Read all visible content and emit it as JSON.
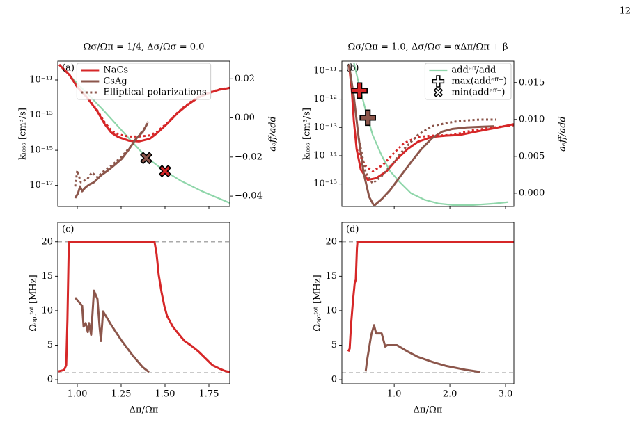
{
  "page_number": "12",
  "chart_data": [
    {
      "type": "line",
      "panel_label": "(a)",
      "title": "Ωσ/Ωπ = 1/4, Δσ/Ωσ = 0.0",
      "ylabel": "kₗₒₛₛ [cm³/s]",
      "y2label": "aₑff/add",
      "y2color": "#3cb371",
      "xlim": [
        0.889,
        1.869
      ],
      "ylim": [
        6.3e-19,
        1.17e-10
      ],
      "ylog": true,
      "yticks": [
        {
          "value": 1e-11,
          "label": "10⁻¹¹"
        },
        {
          "value": 1e-13,
          "label": "10⁻¹³"
        },
        {
          "value": 1e-15,
          "label": "10⁻¹⁵"
        },
        {
          "value": 1e-17,
          "label": "10⁻¹⁷"
        }
      ],
      "y2lim": [
        -0.0453,
        0.029
      ],
      "y2ticks": [
        {
          "value": 0.02,
          "label": "0.02"
        },
        {
          "value": 0,
          "label": "0.00"
        },
        {
          "value": -0.02,
          "label": "−0.02"
        },
        {
          "value": -0.04,
          "label": "−0.04"
        }
      ],
      "legend": "upper center",
      "series": [
        {
          "color": "#8fd6aa",
          "style": "solid",
          "axis": "y2",
          "x": [
            0.909,
            0.956,
            1.016,
            1.075,
            1.155,
            1.234,
            1.313,
            1.393,
            1.5,
            1.591,
            1.71,
            1.869
          ],
          "values": [
            0.0264,
            0.0218,
            0.0161,
            0.0108,
            0.0033,
            -0.0045,
            -0.0123,
            -0.0201,
            -0.0272,
            -0.0322,
            -0.0375,
            -0.0435
          ]
        },
        {
          "name": "NaCs",
          "color": "#d62728",
          "style": "solid",
          "x": [
            0.897,
            0.956,
            1.0,
            1.056,
            1.115,
            1.155,
            1.194,
            1.234,
            1.294,
            1.353,
            1.413,
            1.452,
            1.512,
            1.571,
            1.631,
            1.69,
            1.75,
            1.81,
            1.869
          ],
          "values": [
            7.4e-11,
            1.9e-11,
            4e-12,
            1e-12,
            1.6e-13,
            3.2e-14,
            1e-14,
            5.6e-15,
            3.5e-15,
            3.2e-15,
            4.5e-15,
            8.9e-15,
            3.2e-14,
            1.3e-13,
            4e-13,
            1e-12,
            1.8e-12,
            2.8e-12,
            3.5e-12
          ]
        },
        {
          "name": "CsAg",
          "color": "#8c564b",
          "style": "solid",
          "x": [
            0.988,
            1.004,
            1.016,
            1.028,
            1.044,
            1.067,
            1.095,
            1.135,
            1.175,
            1.214,
            1.254,
            1.294,
            1.333,
            1.373,
            1.401
          ],
          "values": [
            1.9e-18,
            3.5e-18,
            8.7e-18,
            4.6e-18,
            7.2e-18,
            1.1e-17,
            1.5e-17,
            3.7e-17,
            7.1e-17,
            1.5e-16,
            3.3e-16,
            1.1e-15,
            4.3e-15,
            1.1e-14,
            3.5e-14
          ]
        },
        {
          "color": "#d62728",
          "style": "dotted",
          "x": [
            0.897,
            0.956,
            1.0,
            1.056,
            1.115,
            1.155,
            1.194,
            1.234,
            1.294,
            1.353,
            1.413,
            1.452,
            1.512,
            1.571,
            1.631,
            1.69,
            1.75,
            1.81,
            1.869
          ],
          "values": [
            7.4e-11,
            1.9e-11,
            4e-12,
            1e-12,
            1.8e-13,
            4e-14,
            1.3e-14,
            8e-15,
            6e-15,
            6e-15,
            7e-15,
            1.1e-14,
            3.5e-14,
            1.4e-13,
            4.5e-13,
            1.1e-12,
            1.9e-12,
            2.9e-12,
            3.6e-12
          ]
        },
        {
          "name": "Elliptical polarizations",
          "color": "#8c564b",
          "style": "dotted",
          "x": [
            0.988,
            1.0,
            1.02,
            1.056,
            1.083,
            1.115,
            1.155,
            1.194,
            1.254,
            1.313,
            1.373,
            1.405
          ],
          "values": [
            8.7e-18,
            7.1e-17,
            1.5e-17,
            2.2e-17,
            5.4e-17,
            2.9e-17,
            7.1e-17,
            1.3e-16,
            4.4e-16,
            2.1e-15,
            1.3e-14,
            4.2e-14
          ]
        }
      ],
      "markers": [
        {
          "marker": "X",
          "color": "#8c564b",
          "axis": "y2",
          "x": 1.393,
          "value": -0.0205
        },
        {
          "marker": "X",
          "color": "#d62728",
          "axis": "y2",
          "x": 1.5,
          "value": -0.0272
        }
      ]
    },
    {
      "type": "line",
      "panel_label": "(b)",
      "title": "Ωσ/Ωπ = 1.0, Δσ/Ωσ = αΔπ/Ωπ + β",
      "ylabel": "kₗₒₛₛ [cm³/s]",
      "y2label": "aₑff/add",
      "y2color": "#3cb371",
      "xlim": [
        0.06,
        3.15
      ],
      "ylim": [
        1.6e-16,
        2.2e-11
      ],
      "ylog": true,
      "yticks": [
        {
          "value": 1e-11,
          "label": "10⁻¹¹"
        },
        {
          "value": 1e-12,
          "label": "10⁻¹²"
        },
        {
          "value": 1e-13,
          "label": "10⁻¹³"
        },
        {
          "value": 1e-14,
          "label": "10⁻¹⁴"
        },
        {
          "value": 1e-15,
          "label": "10⁻¹⁵"
        }
      ],
      "y2lim": [
        -0.0018,
        0.0179
      ],
      "y2ticks": [
        0.015,
        {
          "value": 0.01,
          "label": "0.010"
        },
        0.005,
        {
          "value": 0,
          "label": "0.000"
        }
      ],
      "legend": "upper right",
      "series": [
        {
          "name": "addᵉᶠᶠ/add",
          "color": "#8fd6aa",
          "style": "solid",
          "axis": "y2",
          "x": [
            0.275,
            0.3625,
            0.4875,
            0.6125,
            0.775,
            0.925,
            1.1125,
            1.3,
            1.55,
            1.8,
            2.05,
            2.425,
            2.8,
            3.05
          ],
          "values": [
            0.0177,
            0.0149,
            0.0112,
            0.0079,
            0.0051,
            0.003,
            0.0014,
            0.0,
            -0.0009,
            -0.0014,
            -0.0016,
            -0.0016,
            -0.0014,
            -0.0012
          ]
        },
        {
          "color": "#d62728",
          "style": "solid",
          "x": [
            0.1875,
            0.2375,
            0.275,
            0.325,
            0.4,
            0.525,
            0.675,
            0.8625,
            1.05,
            1.2375,
            1.425,
            1.675,
            1.925,
            2.175,
            2.425,
            2.675,
            2.925,
            3.15
          ],
          "values": [
            1.7e-11,
            2.1e-12,
            1.7e-13,
            1.7e-14,
            3.2e-15,
            1.4e-15,
            1.6e-15,
            2.8e-15,
            7.6e-15,
            1.7e-14,
            3.1e-14,
            4.6e-14,
            5.1e-14,
            5.4e-14,
            6.8e-14,
            8.5e-14,
            1.05e-13,
            1.3e-13
          ]
        },
        {
          "color": "#8c564b",
          "style": "solid",
          "x": [
            0.1875,
            0.275,
            0.3625,
            0.45,
            0.55,
            0.6375,
            0.775,
            0.925,
            1.1125,
            1.3,
            1.4875,
            1.675,
            1.8625,
            2.05,
            2.3,
            2.55,
            2.8
          ],
          "values": [
            1.7e-11,
            1.2e-12,
            4.1e-14,
            2.5e-15,
            3.5e-16,
            1.7e-16,
            2.9e-16,
            6e-16,
            1.9e-15,
            5.8e-15,
            1.7e-14,
            4.1e-14,
            7.1e-14,
            8.9e-14,
            1e-13,
            1.05e-13,
            1.1e-13
          ]
        },
        {
          "color": "#d62728",
          "style": "dotted",
          "x": [
            0.325,
            0.4875,
            0.6125,
            0.8,
            0.9875,
            1.175,
            1.425,
            1.675,
            2.05,
            2.425,
            2.8,
            3.15
          ],
          "values": [
            1.7e-14,
            4.3e-15,
            2.8e-15,
            4.8e-15,
            1.2e-14,
            2.8e-14,
            4.6e-14,
            5.1e-14,
            5.4e-14,
            8e-14,
            1e-13,
            1.2e-13
          ]
        },
        {
          "color": "#8c564b",
          "style": "dotted",
          "x": [
            0.3625,
            0.4875,
            0.6125,
            0.775,
            0.9875,
            1.175,
            1.425,
            1.675,
            1.925,
            2.175,
            2.55,
            2.825
          ],
          "values": [
            4.1e-14,
            2.5e-15,
            1.05e-15,
            1.9e-15,
            5.8e-15,
            1.7e-14,
            5.4e-14,
            1.1e-13,
            1.4e-13,
            1.7e-13,
            1.9e-13,
            1.9e-13
          ]
        }
      ],
      "markers": [
        {
          "marker": "P",
          "color": "#d62728",
          "x": 0.375,
          "value": 2e-12
        },
        {
          "marker": "P",
          "color": "#8c564b",
          "x": 0.525,
          "value": 2.2e-13
        }
      ],
      "legend_markers": [
        {
          "marker": "P",
          "label": "max(addᵉᶠᶠ⁺)"
        },
        {
          "marker": "X",
          "label": "min(addᵉᶠᶠ⁻)"
        }
      ]
    },
    {
      "type": "line",
      "panel_label": "(c)",
      "ylabel": "Ωₒₚₜᵗᵒᵗ [MHz]",
      "xlabel": "Δπ/Ωπ",
      "xlim": [
        0.889,
        1.869
      ],
      "ylim": [
        -0.6,
        22.8
      ],
      "xticks": [
        {
          "value": 1,
          "label": "1.00"
        },
        1.25,
        {
          "value": 1.5,
          "label": "1.50"
        },
        1.75
      ],
      "yticks": [
        0,
        5,
        10,
        15,
        20
      ],
      "hlines": [
        20,
        1
      ],
      "series": [
        {
          "color": "#d62728",
          "style": "solid",
          "x": [
            0.893,
            0.925,
            0.937,
            0.944,
            0.952,
            1.44,
            1.452,
            1.464,
            1.48,
            1.496,
            1.512,
            1.544,
            1.575,
            1.611,
            1.651,
            1.69,
            1.73,
            1.77,
            1.81,
            1.837,
            1.869
          ],
          "values": [
            1.2,
            1.4,
            2.1,
            8.7,
            20,
            20,
            18.2,
            15.2,
            12.7,
            10.7,
            9.2,
            7.7,
            6.7,
            5.6,
            4.9,
            4.1,
            3.1,
            2.1,
            1.6,
            1.3,
            1.1
          ]
        },
        {
          "color": "#8c564b",
          "style": "solid",
          "x": [
            0.988,
            1.028,
            1.036,
            1.048,
            1.06,
            1.067,
            1.079,
            1.095,
            1.115,
            1.127,
            1.135,
            1.147,
            1.194,
            1.254,
            1.313,
            1.373,
            1.409
          ],
          "values": [
            11.9,
            10.7,
            7.7,
            8.2,
            6.9,
            8.2,
            6.5,
            12.9,
            11.7,
            7.7,
            5.6,
            9.9,
            7.9,
            5.6,
            3.6,
            1.8,
            1.1
          ]
        }
      ]
    },
    {
      "type": "line",
      "panel_label": "(d)",
      "ylabel": "Ωₒₚₜᵗᵒᵗ [MHz]",
      "xlabel": "Δπ/Ωπ",
      "xlim": [
        0.06,
        3.15
      ],
      "ylim": [
        -0.6,
        22.8
      ],
      "xticks": [
        {
          "value": 1,
          "label": "1.0"
        },
        {
          "value": 2,
          "label": "2.0"
        },
        {
          "value": 3,
          "label": "3.0"
        }
      ],
      "yticks": [
        0,
        5,
        10,
        15,
        20
      ],
      "hlines": [
        20,
        1
      ],
      "series": [
        {
          "color": "#d62728",
          "style": "solid",
          "x": [
            0.175,
            0.2,
            0.225,
            0.26,
            0.29,
            0.31,
            0.33,
            0.34,
            3.15
          ],
          "values": [
            4.1,
            4.5,
            8,
            11.5,
            14,
            14.5,
            19,
            20,
            20
          ]
        },
        {
          "color": "#8c564b",
          "style": "solid",
          "x": [
            0.4875,
            0.5125,
            0.5875,
            0.6375,
            0.675,
            0.775,
            0.8375,
            0.875,
            1.05,
            1.2375,
            1.425,
            1.675,
            1.925,
            2.175,
            2.3,
            2.55
          ],
          "values": [
            1.2,
            2.8,
            6.5,
            7.9,
            6.7,
            6.7,
            4.8,
            5.0,
            5.0,
            4.1,
            3.3,
            2.6,
            2.0,
            1.6,
            1.4,
            1.1
          ]
        }
      ]
    }
  ]
}
